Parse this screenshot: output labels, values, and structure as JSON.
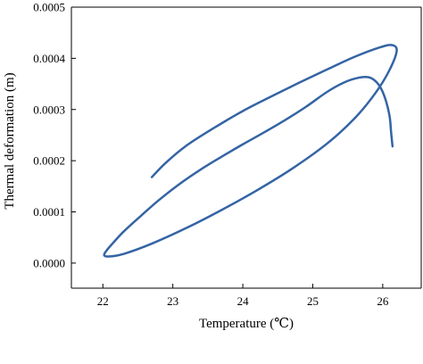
{
  "chart_data": {
    "type": "line",
    "xlabel": "Temperature (℃)",
    "ylabel": "Thermal deformation (m)",
    "xlim": [
      21.55,
      26.55
    ],
    "ylim": [
      -4.9e-05,
      0.0005
    ],
    "xticks": [
      "22",
      "23",
      "24",
      "25",
      "26"
    ],
    "yticks": [
      "0.0000",
      "0.0001",
      "0.0002",
      "0.0003",
      "0.0004",
      "0.0005"
    ],
    "grid": false,
    "series_color": "#3464a4",
    "series": [
      {
        "x": [
          26.14,
          26.12,
          26.1,
          26.05,
          25.98,
          25.9,
          25.8,
          25.65,
          25.45,
          25.2,
          24.9,
          24.6,
          24.3,
          24.0,
          23.7,
          23.4,
          23.1,
          22.8,
          22.55,
          22.3,
          22.15,
          22.05,
          22.02,
          22.1,
          22.3,
          22.7,
          23.2,
          23.7,
          24.2,
          24.7,
          25.2,
          25.6,
          25.9,
          26.1,
          26.2,
          26.13,
          25.95,
          25.6,
          25.2,
          24.8,
          24.4,
          24.0,
          23.6,
          23.2,
          22.9,
          22.7
        ],
        "y": [
          0.000228,
          0.000255,
          0.000285,
          0.000315,
          0.00034,
          0.000355,
          0.000363,
          0.000362,
          0.000353,
          0.000334,
          0.000305,
          0.000279,
          0.000255,
          0.000232,
          0.000208,
          0.000183,
          0.000155,
          0.000123,
          9.3e-05,
          6.2e-05,
          4e-05,
          2.4e-05,
          1.5e-05,
          1.3e-05,
          1.8e-05,
          3.8e-05,
          6.9e-05,
          0.000104,
          0.000142,
          0.000184,
          0.000233,
          0.000283,
          0.000333,
          0.000378,
          0.000415,
          0.000426,
          0.000421,
          0.000403,
          0.000378,
          0.000352,
          0.000325,
          0.000297,
          0.000265,
          0.00023,
          0.000196,
          0.000168
        ]
      }
    ]
  }
}
